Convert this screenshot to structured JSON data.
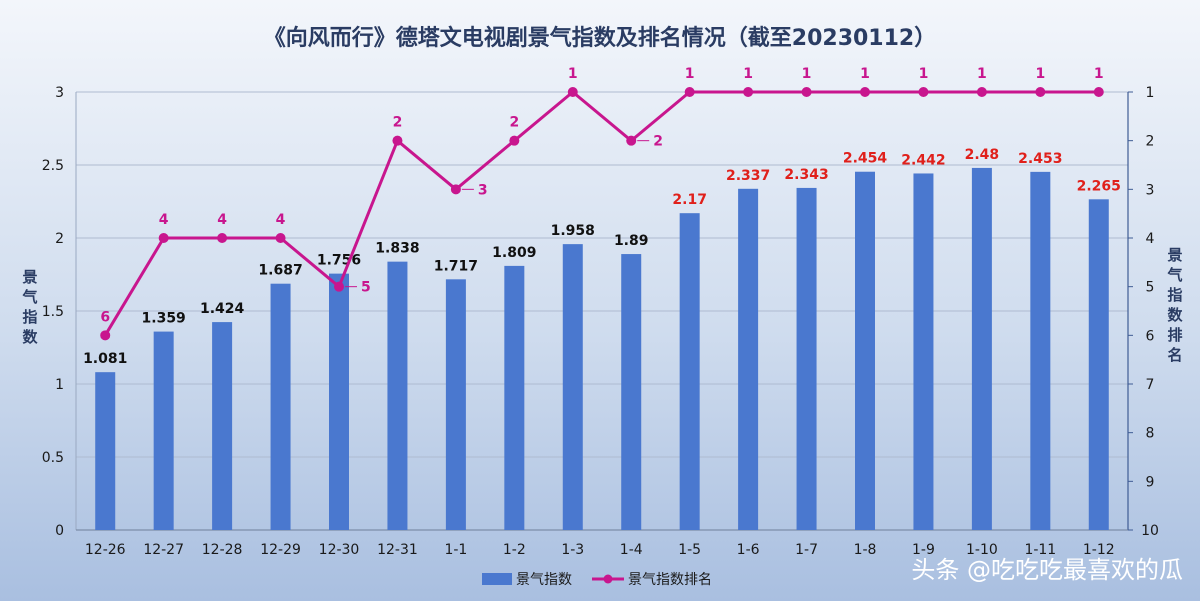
{
  "chart_data": {
    "type": "bar",
    "title": "《向风而行》德塔文电视剧景气指数及排名情况（截至20230112）",
    "categories": [
      "12-26",
      "12-27",
      "12-28",
      "12-29",
      "12-30",
      "12-31",
      "1-1",
      "1-2",
      "1-3",
      "1-4",
      "1-5",
      "1-6",
      "1-7",
      "1-8",
      "1-9",
      "1-10",
      "1-11",
      "1-12"
    ],
    "series": [
      {
        "name": "景气指数",
        "type": "bar",
        "axis": "left",
        "values": [
          1.081,
          1.359,
          1.424,
          1.687,
          1.756,
          1.838,
          1.717,
          1.809,
          1.958,
          1.89,
          2.17,
          2.337,
          2.343,
          2.454,
          2.442,
          2.48,
          2.453,
          2.265
        ],
        "value_label_colors": [
          "#111111",
          "#111111",
          "#111111",
          "#111111",
          "#111111",
          "#111111",
          "#111111",
          "#111111",
          "#111111",
          "#111111",
          "#e0201b",
          "#e0201b",
          "#e0201b",
          "#e0201b",
          "#e0201b",
          "#e0201b",
          "#e0201b",
          "#e0201b"
        ]
      },
      {
        "name": "景气指数排名",
        "type": "line",
        "axis": "right",
        "values": [
          6,
          4,
          4,
          4,
          5,
          2,
          3,
          2,
          1,
          2,
          1,
          1,
          1,
          1,
          1,
          1,
          1,
          1
        ]
      }
    ],
    "y_left": {
      "label": "景气指数",
      "range": [
        0,
        3
      ],
      "ticks": [
        "0",
        "0.5",
        "1",
        "1.5",
        "2",
        "2.5",
        "3"
      ]
    },
    "y_right": {
      "label": "景气指数排名",
      "range": [
        1,
        10
      ],
      "reversed": true,
      "ticks": [
        "1",
        "2",
        "3",
        "4",
        "5",
        "6",
        "7",
        "8",
        "9",
        "10"
      ]
    },
    "grid": true,
    "legend": "bottom",
    "colors": {
      "bar": "#4a78cf",
      "line": "#c8168e",
      "rank_label": "#c8168e",
      "highlight_label": "#e0201b",
      "title": "#2a3c63"
    }
  },
  "watermark": "头条 @吃吃吃最喜欢的瓜"
}
